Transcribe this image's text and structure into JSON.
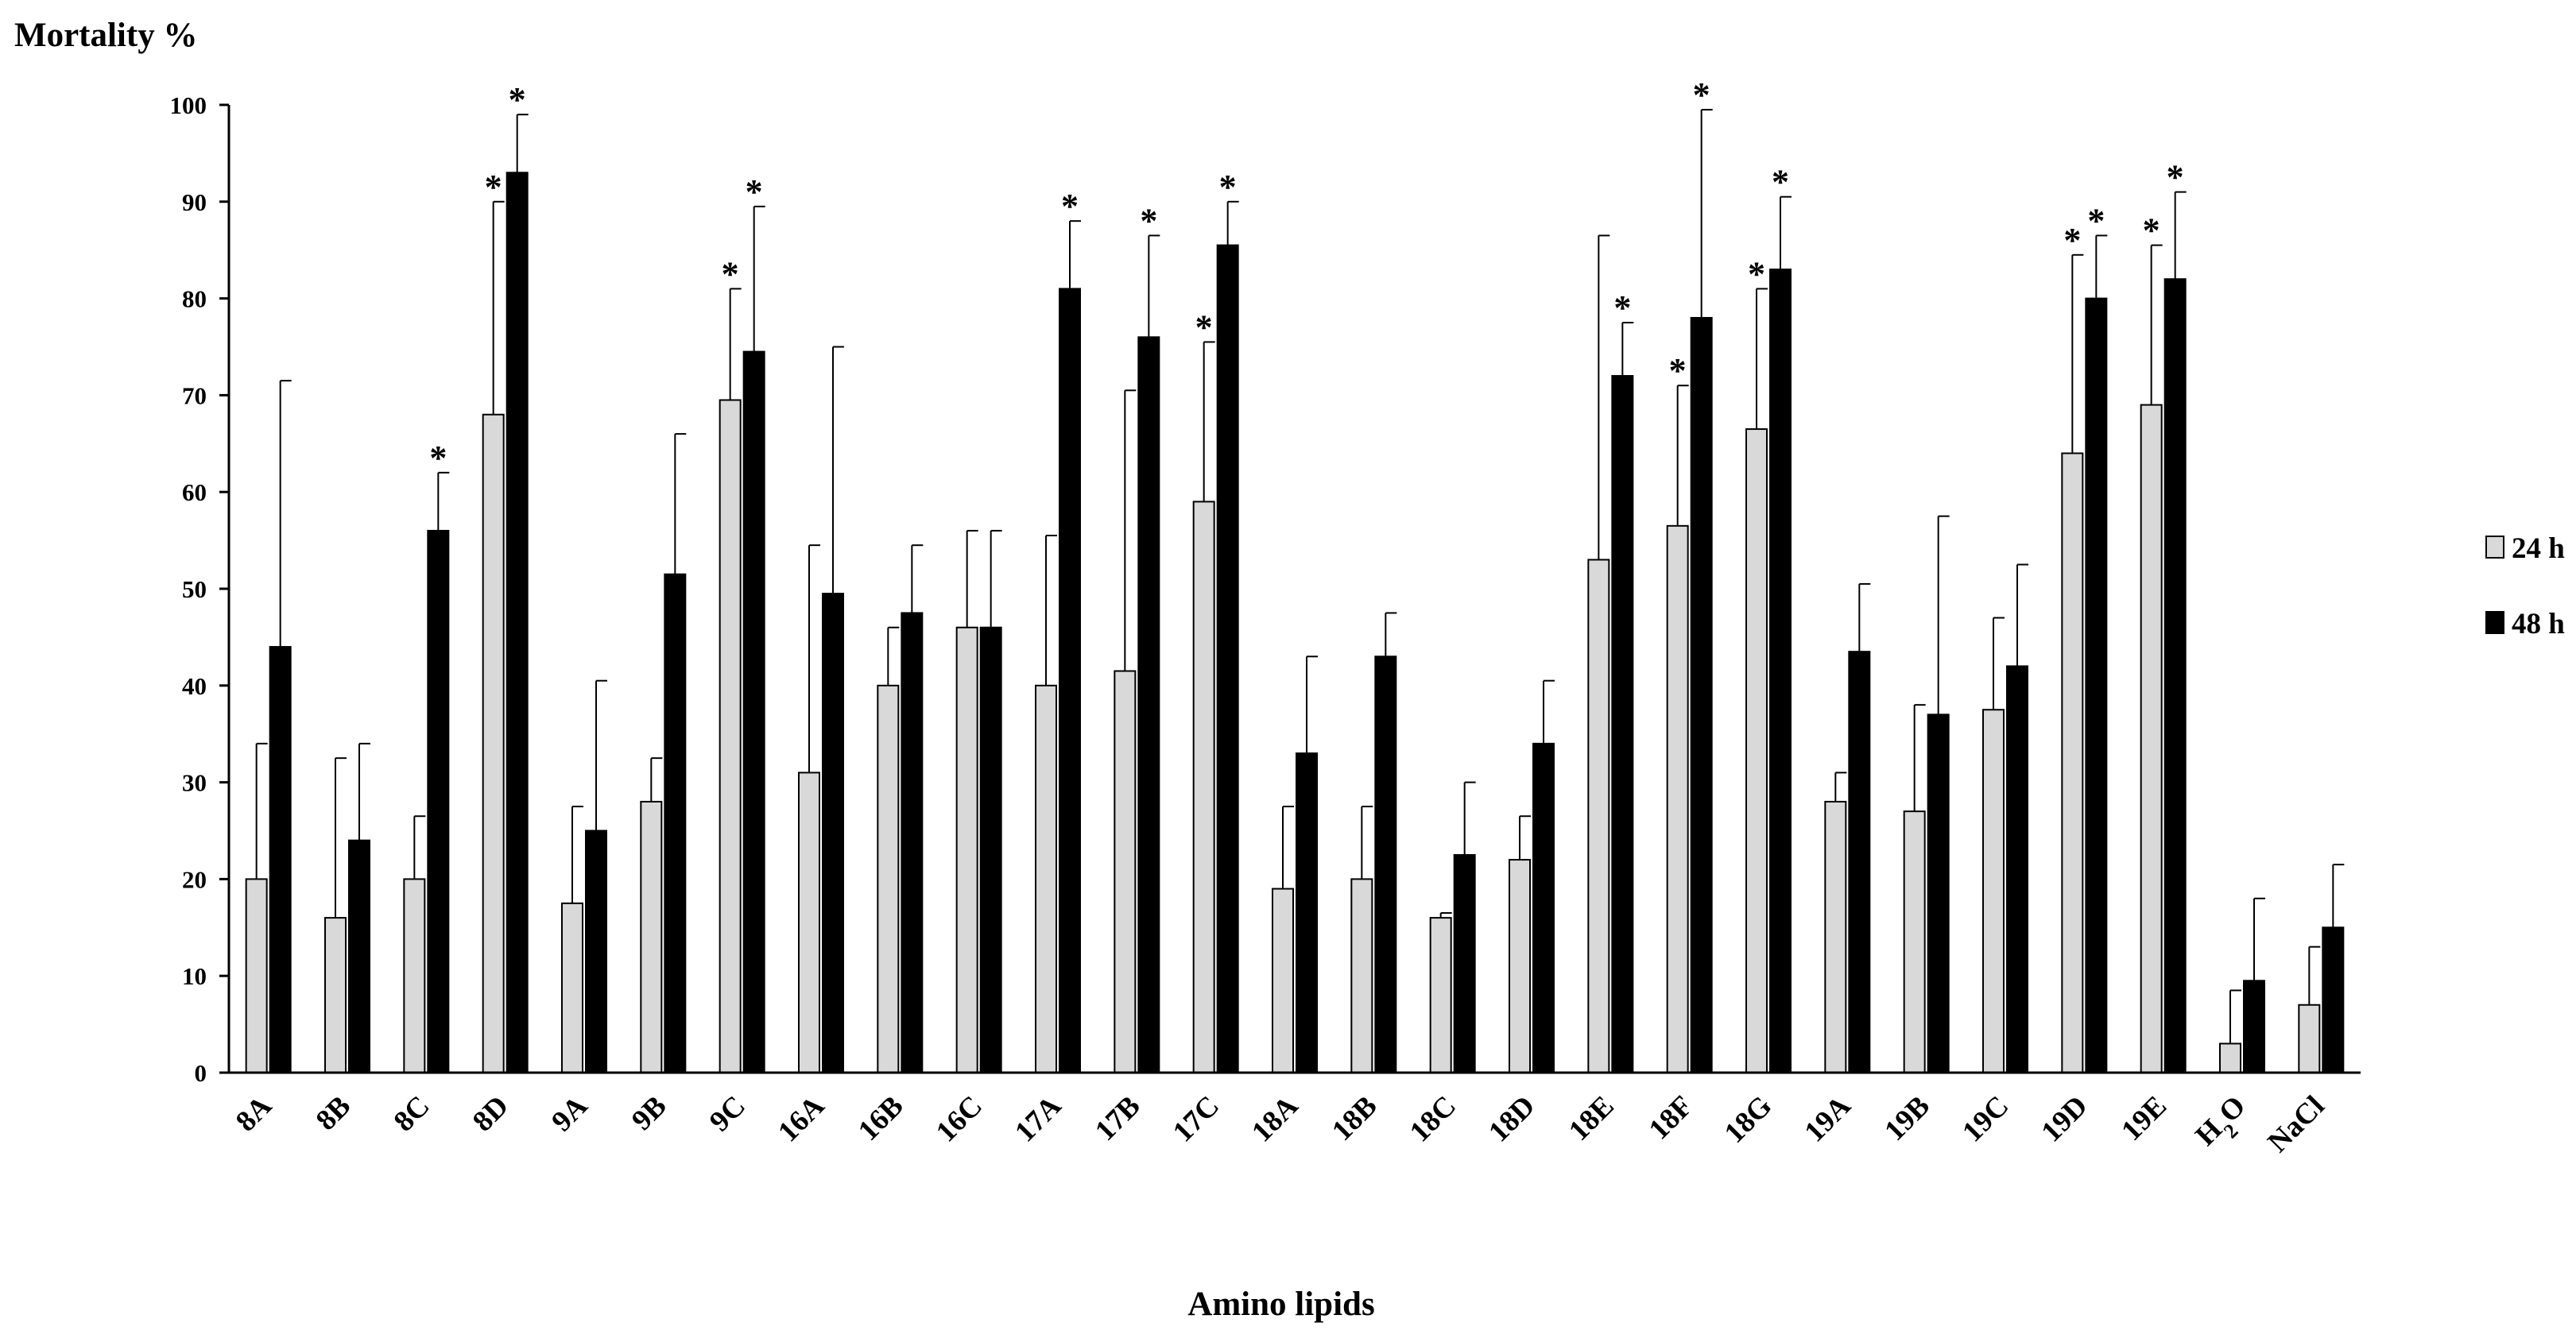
{
  "chart_data": {
    "type": "bar",
    "ylabel": "Mortality %",
    "xlabel": "Amino lipids",
    "ylim": [
      0,
      100
    ],
    "yticks": [
      "0",
      "10",
      "20",
      "30",
      "40",
      "50",
      "60",
      "70",
      "80",
      "90",
      "100"
    ],
    "grid": false,
    "legend_position": "right",
    "categories": [
      "8A",
      "8B",
      "8C",
      "8D",
      "9A",
      "9B",
      "9C",
      "16A",
      "16B",
      "16C",
      "17A",
      "17B",
      "17C",
      "18A",
      "18B",
      "18C",
      "18D",
      "18E",
      "18F",
      "18G",
      "19A",
      "19B",
      "19C",
      "19D",
      "19E",
      "H2O",
      "NaCl"
    ],
    "series": [
      {
        "name": "24 h",
        "color": "#d9d9d9",
        "values": [
          20,
          16,
          20,
          68,
          17.5,
          28,
          69.5,
          31,
          40,
          46,
          40,
          41.5,
          59,
          19,
          20,
          16,
          22,
          53,
          56.5,
          66.5,
          28,
          27,
          37.5,
          64,
          69,
          3,
          7
        ],
        "errors": [
          14,
          16.5,
          6.5,
          22,
          10,
          4.5,
          11.5,
          23.5,
          6,
          10,
          15.5,
          29,
          16.5,
          8.5,
          7.5,
          0.5,
          4.5,
          33.5,
          14.5,
          14.5,
          3,
          11,
          9.5,
          20.5,
          16.5,
          5.5,
          6
        ],
        "significant": [
          false,
          false,
          false,
          true,
          false,
          false,
          true,
          false,
          false,
          false,
          false,
          false,
          true,
          false,
          false,
          false,
          false,
          false,
          true,
          true,
          false,
          false,
          false,
          true,
          true,
          false,
          false
        ]
      },
      {
        "name": "48 h",
        "color": "#000000",
        "values": [
          44,
          24,
          56,
          93,
          25,
          51.5,
          74.5,
          49.5,
          47.5,
          46,
          81,
          76,
          85.5,
          33,
          43,
          22.5,
          34,
          72,
          78,
          83,
          43.5,
          37,
          42,
          80,
          82,
          9.5,
          15
        ],
        "errors": [
          27.5,
          10,
          6,
          6,
          15.5,
          14.5,
          15,
          25.5,
          7,
          10,
          7,
          10.5,
          4.5,
          10,
          4.5,
          7.5,
          6.5,
          5.5,
          21.5,
          7.5,
          7,
          20.5,
          10.5,
          6.5,
          9,
          8.5,
          6.5
        ],
        "significant": [
          false,
          false,
          true,
          true,
          false,
          false,
          true,
          false,
          false,
          false,
          true,
          true,
          true,
          false,
          false,
          false,
          false,
          true,
          true,
          true,
          false,
          false,
          false,
          true,
          true,
          false,
          false
        ]
      }
    ],
    "annotation_symbol": "*"
  }
}
